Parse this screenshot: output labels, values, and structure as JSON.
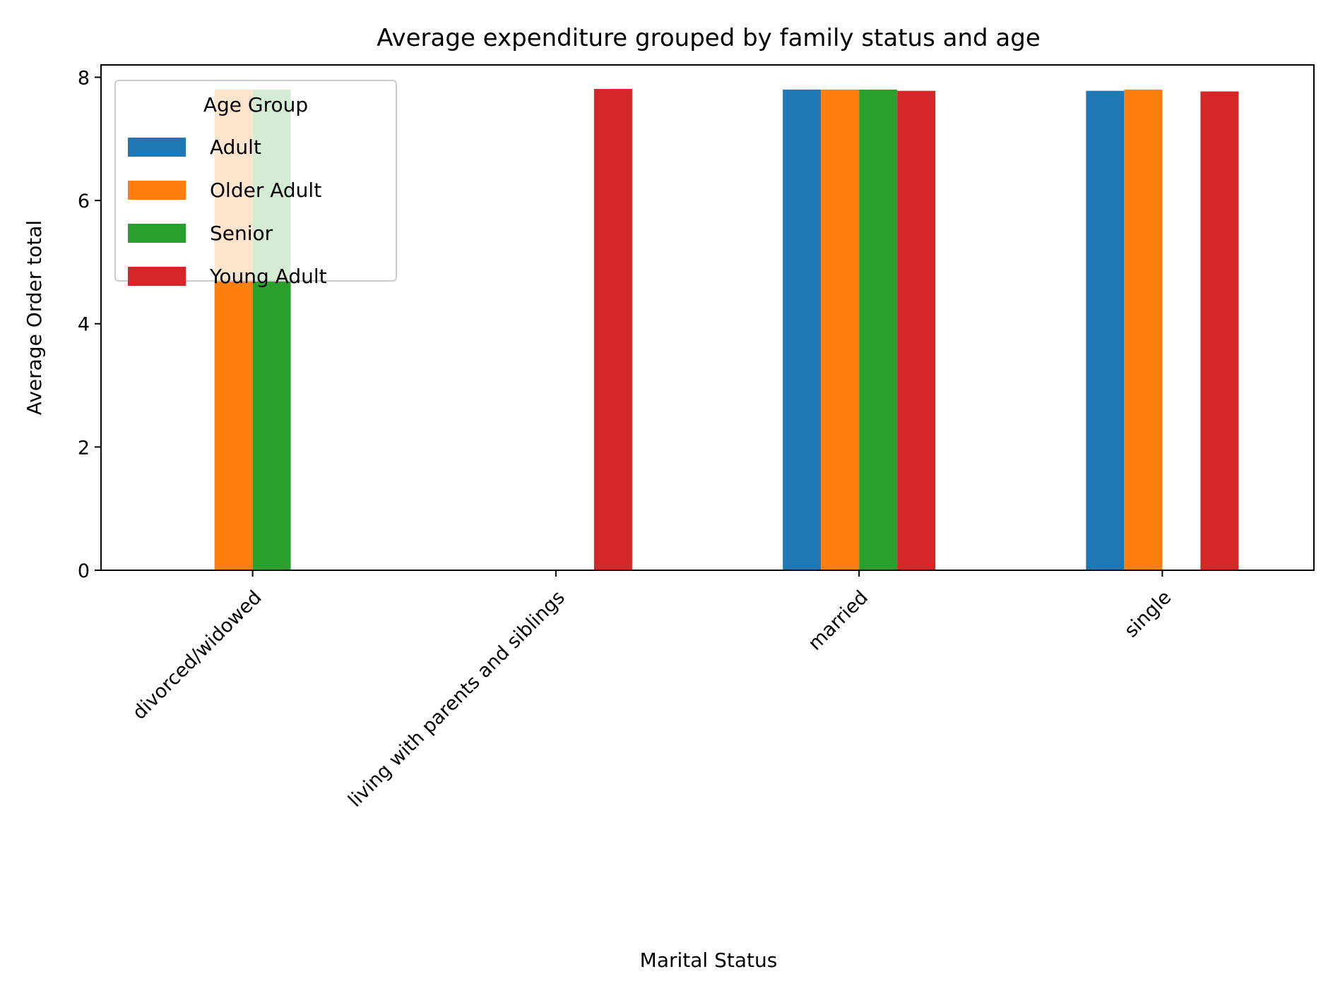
{
  "chart_data": {
    "type": "bar",
    "title": "Average expenditure grouped by family status and age",
    "xlabel": "Marital Status",
    "ylabel": "Average Order total",
    "categories": [
      "divorced/widowed",
      "living with parents and siblings",
      "married",
      "single"
    ],
    "series": [
      {
        "name": "Adult",
        "color": "#1f77b4",
        "values": [
          null,
          null,
          7.8,
          7.78
        ]
      },
      {
        "name": "Older Adult",
        "color": "#ff7f0e",
        "values": [
          7.8,
          null,
          7.8,
          7.8
        ]
      },
      {
        "name": "Senior",
        "color": "#2ca02c",
        "values": [
          7.8,
          null,
          7.8,
          null
        ]
      },
      {
        "name": "Young Adult",
        "color": "#d62728",
        "values": [
          null,
          7.81,
          7.78,
          7.77
        ]
      }
    ],
    "ylim": [
      0,
      8.2
    ],
    "yticks": [
      0,
      2,
      4,
      6,
      8
    ],
    "grid": false,
    "legend": {
      "title": "Age Group",
      "placement": "upper-left"
    }
  }
}
